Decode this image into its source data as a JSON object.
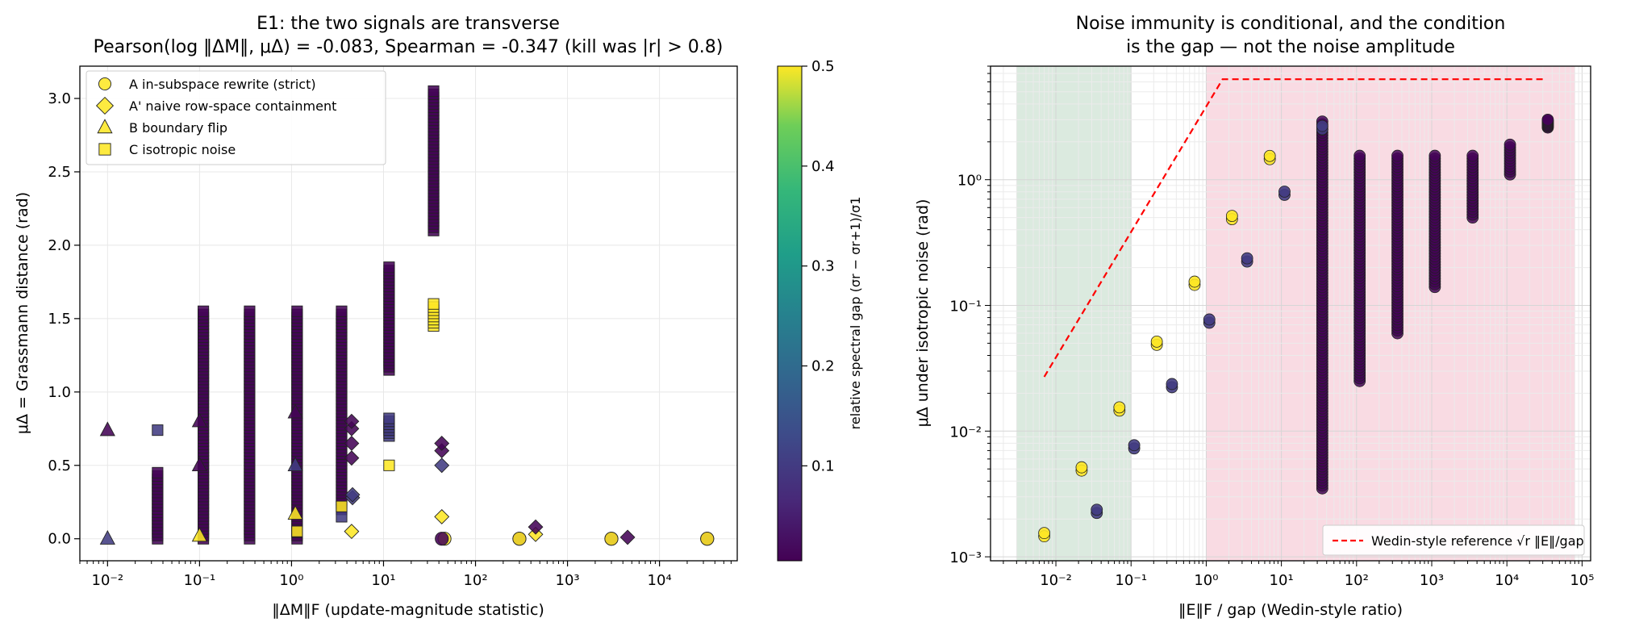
{
  "left_plot": {
    "title_line1": "E1: the two signals are transverse",
    "title_line2": "Pearson(log ‖ΔM‖,  μΔ) = -0.083,  Spearman = -0.347   (kill was |r| > 0.8)",
    "xlabel": "‖ΔM‖F   (update-magnitude statistic)",
    "ylabel": "μΔ = Grassmann distance (rad)",
    "legend": [
      {
        "marker": "circle",
        "label": "A  in-subspace rewrite (strict)"
      },
      {
        "marker": "diamond",
        "label": "A' naive row-space containment"
      },
      {
        "marker": "triangle",
        "label": "B  boundary flip"
      },
      {
        "marker": "square",
        "label": "C  isotropic noise"
      }
    ],
    "colorbar_label": "relative spectral gap (σr − σr+1)/σ1",
    "colorbar_ticks": [
      "0.1",
      "0.2",
      "0.3",
      "0.4",
      "0.5"
    ]
  },
  "right_plot": {
    "title_line1": "Noise immunity is conditional, and the condition",
    "title_line2": "is the gap — not the noise amplitude",
    "xlabel": "‖E‖F / gap   (Wedin-style ratio)",
    "ylabel": "μΔ under isotropic noise (rad)",
    "legend_label": "Wedin-style reference √r ‖E‖/gap"
  },
  "colors": {
    "viridis_low": "#440154",
    "viridis_mid": "#21918c",
    "viridis_high": "#fde725",
    "purple_points": "#4a1560",
    "blue_points": "#3b528b",
    "yellow_points": "#fde725",
    "green_band": "#dbeadf",
    "pink_band": "#f9dbe3",
    "reference_line": "#ff0000"
  },
  "chart_data": [
    {
      "type": "scatter",
      "title": "E1: the two signals are transverse\nPearson(log ‖ΔM‖,  μΔ) = -0.083,  Spearman = -0.347   (kill was |r| > 0.8)",
      "xlabel": "‖ΔM‖F   (update-magnitude statistic)",
      "ylabel": "μΔ = Grassmann distance (rad)",
      "xscale": "log",
      "xlim": [
        0.005,
        70000
      ],
      "ylim": [
        -0.15,
        3.22
      ],
      "x_ticks": [
        "10⁻²",
        "10⁻¹",
        "10⁰",
        "10¹",
        "10²",
        "10³",
        "10⁴"
      ],
      "y_ticks": [
        "0.0",
        "0.5",
        "1.0",
        "1.5",
        "2.0",
        "2.5",
        "3.0"
      ],
      "grid": true,
      "legend_position": "top-left",
      "colorbar": {
        "label": "relative spectral gap (σr − σr+1)/σ1",
        "range": [
          0.005,
          0.5
        ]
      },
      "series": [
        {
          "name": "A  in-subspace rewrite (strict)",
          "marker": "circle",
          "points": [
            [
              46,
              0
            ],
            [
              43,
              0
            ],
            [
              300,
              0
            ],
            [
              3000,
              0
            ],
            [
              33000,
              0
            ],
            [
              3000,
              0
            ],
            [
              300,
              0
            ],
            [
              33000,
              0
            ]
          ],
          "gap": [
            0.5,
            0.005,
            0.005,
            0.005,
            0.005,
            0.5,
            0.5,
            0.5
          ]
        },
        {
          "name": "A' naive row-space containment",
          "marker": "diamond",
          "points": [
            [
              4.5,
              0.05
            ],
            [
              43,
              0.15
            ],
            [
              450,
              0.03
            ],
            [
              4.6,
              0.28
            ],
            [
              4.6,
              0.3
            ],
            [
              43,
              0.5
            ],
            [
              450,
              0.08
            ],
            [
              4500,
              0.01
            ],
            [
              4.5,
              0.55
            ],
            [
              4.5,
              0.65
            ],
            [
              4.5,
              0.75
            ],
            [
              4.5,
              0.8
            ],
            [
              43,
              0.6
            ],
            [
              43,
              0.65
            ]
          ],
          "gap": [
            0.5,
            0.5,
            0.5,
            0.1,
            0.1,
            0.1,
            0.005,
            0.005,
            0.005,
            0.005,
            0.005,
            0.005,
            0.005,
            0.005
          ]
        },
        {
          "name": "B  boundary flip",
          "marker": "triangle",
          "points": [
            [
              0.01,
              0
            ],
            [
              0.01,
              0.74
            ],
            [
              0.1,
              0.02
            ],
            [
              0.1,
              0.8
            ],
            [
              1.1,
              0.17
            ],
            [
              1.1,
              0.5
            ],
            [
              1.1,
              0.86
            ],
            [
              0.1,
              0.5
            ]
          ],
          "gap": [
            0.1,
            0.005,
            0.5,
            0.005,
            0.5,
            0.1,
            0.005,
            0.005
          ]
        },
        {
          "name": "C  isotropic noise",
          "marker": "square",
          "columns": [
            {
              "x": 0.035,
              "y_min": 0,
              "y_max": 0.45,
              "gap": 0.005
            },
            {
              "x": 0.035,
              "y": 0.74,
              "gap": 0.1
            },
            {
              "x": 0.11,
              "y_min": 0,
              "y_max": 1.55,
              "gap": 0.005
            },
            {
              "x": 0.35,
              "y_min": 0,
              "y_max": 1.55,
              "gap": 0.005
            },
            {
              "x": 1.15,
              "y_min": 0,
              "y_max": 1.55,
              "gap": 0.005
            },
            {
              "x": 1.15,
              "y": 0.05,
              "gap": 0.5
            },
            {
              "x": 3.5,
              "y_min": 0.2,
              "y_max": 1.55,
              "gap": 0.005
            },
            {
              "x": 3.5,
              "y": 0.15,
              "gap": 0.1
            },
            {
              "x": 3.5,
              "y": 0.22,
              "gap": 0.5
            },
            {
              "x": 11.5,
              "y_min": 1.15,
              "y_max": 1.85,
              "gap": 0.005
            },
            {
              "x": 11.5,
              "y_min": 0.7,
              "y_max": 0.82,
              "gap": 0.1
            },
            {
              "x": 11.5,
              "y": 0.5,
              "gap": 0.5
            },
            {
              "x": 35,
              "y_min": 2.1,
              "y_max": 3.05,
              "gap": 0.005
            },
            {
              "x": 35,
              "y_min": 1.45,
              "y_max": 1.6,
              "gap": 0.5
            }
          ]
        }
      ]
    },
    {
      "type": "scatter",
      "title": "Noise immunity is conditional, and the condition\nis the gap — not the noise amplitude",
      "xlabel": "‖E‖F / gap   (Wedin-style ratio)",
      "ylabel": "μΔ under isotropic noise (rad)",
      "xscale": "log",
      "yscale": "log",
      "xlim": [
        0.00135,
        130000
      ],
      "ylim": [
        0.00093,
        8
      ],
      "x_ticks": [
        "10⁻²",
        "10⁻¹",
        "10⁰",
        "10¹",
        "10²",
        "10³",
        "10⁴",
        "10⁵"
      ],
      "y_ticks": [
        "10⁻³",
        "10⁻²",
        "10⁻¹",
        "10⁰"
      ],
      "grid": true,
      "legend_position": "bottom-right",
      "shaded_regions": [
        {
          "x_range": [
            0.003,
            0.1
          ],
          "color": "green"
        },
        {
          "x_range": [
            1,
            80000
          ],
          "color": "pink"
        }
      ],
      "reference_line": {
        "name": "Wedin-style reference √r ‖E‖/gap",
        "style": "dashed",
        "points": [
          [
            0.007,
            0.027
          ],
          [
            1.65,
            6.3
          ],
          [
            33000,
            6.3
          ]
        ]
      },
      "points": [
        {
          "x": 0.007,
          "y": 0.0015,
          "gap": 0.5
        },
        {
          "x": 0.022,
          "y": 0.005,
          "gap": 0.5
        },
        {
          "x": 0.07,
          "y": 0.015,
          "gap": 0.5
        },
        {
          "x": 0.22,
          "y": 0.05,
          "gap": 0.5
        },
        {
          "x": 0.7,
          "y": 0.15,
          "gap": 0.5
        },
        {
          "x": 2.2,
          "y": 0.5,
          "gap": 0.5
        },
        {
          "x": 7,
          "y": 1.5,
          "gap": 0.5
        },
        {
          "x": 0.035,
          "y": 0.0023,
          "gap": 0.1
        },
        {
          "x": 0.11,
          "y": 0.0075,
          "gap": 0.1
        },
        {
          "x": 0.35,
          "y": 0.023,
          "gap": 0.1
        },
        {
          "x": 1.1,
          "y": 0.075,
          "gap": 0.1
        },
        {
          "x": 3.5,
          "y": 0.23,
          "gap": 0.1
        },
        {
          "x": 11,
          "y": 0.78,
          "gap": 0.1
        },
        {
          "x": 35,
          "y": 2.6,
          "gap": 0.1
        }
      ],
      "columns": [
        {
          "x": 35,
          "y_min": 0.0035,
          "y_max": 2.9,
          "gap": 0.005
        },
        {
          "x": 110,
          "y_min": 0.025,
          "y_max": 1.55,
          "gap": 0.005
        },
        {
          "x": 350,
          "y_min": 0.06,
          "y_max": 1.55,
          "gap": 0.005
        },
        {
          "x": 1100,
          "y_min": 0.14,
          "y_max": 1.55,
          "gap": 0.005
        },
        {
          "x": 3500,
          "y_min": 0.5,
          "y_max": 1.55,
          "gap": 0.005
        },
        {
          "x": 11000,
          "y_min": 1.1,
          "y_max": 1.9,
          "gap": 0.005
        },
        {
          "x": 35000,
          "y_min": 2.6,
          "y_max": 3.0,
          "gap": 0.005
        }
      ]
    }
  ]
}
